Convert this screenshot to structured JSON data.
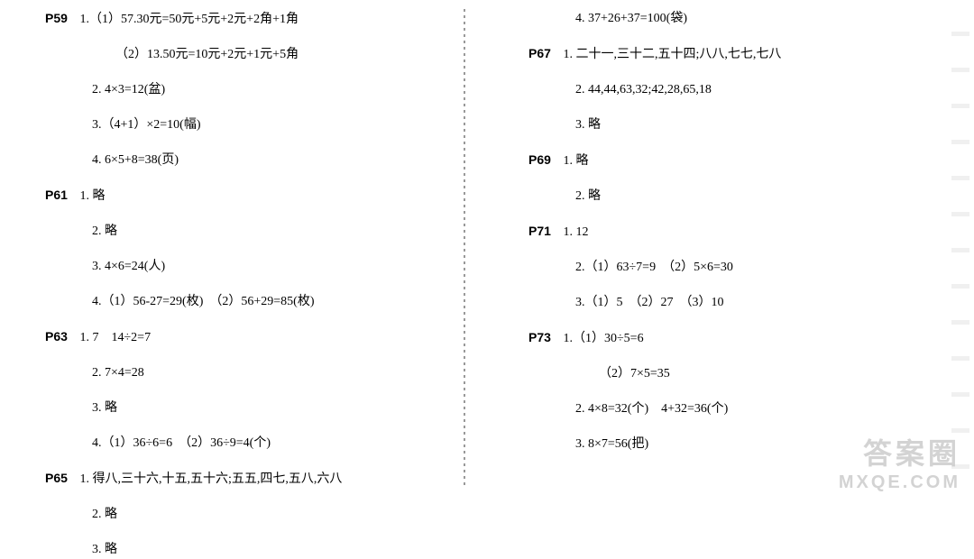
{
  "left": {
    "p59": {
      "ref": "P59",
      "l1": "1.（1）57.30元=50元+5元+2元+2角+1角",
      "l2": "（2）13.50元=10元+2元+1元+5角",
      "l3": "2. 4×3=12(盆)",
      "l4": "3.（4+1）×2=10(幅)",
      "l5": "4. 6×5+8=38(页)"
    },
    "p61": {
      "ref": "P61",
      "l1": "1. 略",
      "l2": "2. 略",
      "l3": "3. 4×6=24(人)",
      "l4": "4.（1）56-27=29(枚)　（2）56+29=85(枚)"
    },
    "p63": {
      "ref": "P63",
      "l1": "1. 7　14÷2=7",
      "l2": "2. 7×4=28",
      "l3": "3. 略",
      "l4": "4.（1）36÷6=6　（2）36÷9=4(个)"
    },
    "p65": {
      "ref": "P65",
      "l1": "1. 得八,三十六,十五,五十六;五五,四七,五八,六八",
      "l2": "2. 略",
      "l3": "3. 略"
    }
  },
  "right": {
    "cont": {
      "l1": "4. 37+26+37=100(袋)"
    },
    "p67": {
      "ref": "P67",
      "l1": "1. 二十一,三十二,五十四;八八,七七,七八",
      "l2": "2. 44,44,63,32;42,28,65,18",
      "l3": "3. 略"
    },
    "p69": {
      "ref": "P69",
      "l1": "1. 略",
      "l2": "2. 略"
    },
    "p71": {
      "ref": "P71",
      "l1": "1. 12",
      "l2": "2.（1）63÷7=9　（2）5×6=30",
      "l3": "3.（1）5　（2）27　（3）10"
    },
    "p73": {
      "ref": "P73",
      "l1": "1.（1）30÷5=6",
      "l2": "（2）7×5=35",
      "l3": "2. 4×8=32(个)　4+32=36(个)",
      "l4": "3. 8×7=56(把)"
    }
  },
  "watermark": {
    "top": "答案圈",
    "bottom": "MXQE.COM"
  }
}
